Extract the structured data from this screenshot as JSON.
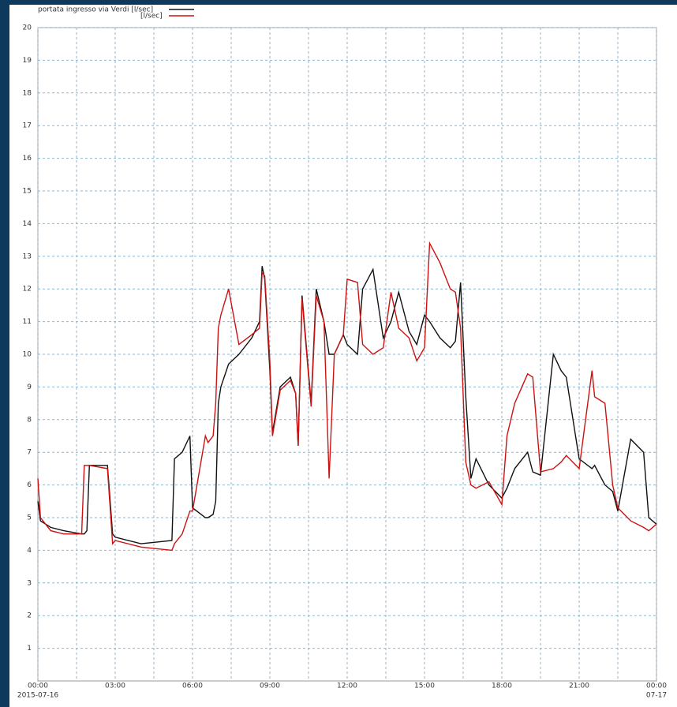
{
  "chart_data": {
    "type": "line",
    "legend": "top-left",
    "grid": true,
    "x": [
      0,
      0.1,
      0.5,
      1.0,
      1.7,
      1.8,
      1.9,
      2.0,
      2.7,
      2.9,
      3.0,
      4.0,
      5.2,
      5.3,
      5.6,
      5.9,
      6.0,
      6.5,
      6.6,
      6.8,
      6.9,
      7.0,
      7.1,
      7.4,
      7.8,
      8.3,
      8.6,
      8.7,
      8.8,
      9.0,
      9.1,
      9.4,
      9.8,
      10.0,
      10.1,
      10.25,
      10.6,
      10.8,
      11.1,
      11.3,
      11.5,
      11.85,
      12.0,
      12.4,
      12.6,
      13.0,
      13.4,
      13.7,
      14.0,
      14.4,
      14.7,
      15.0,
      15.2,
      15.6,
      16.0,
      16.2,
      16.4,
      16.6,
      16.8,
      17.0,
      17.5,
      18.0,
      18.2,
      18.5,
      19.0,
      19.2,
      19.5,
      20.0,
      20.3,
      20.5,
      21.0,
      21.5,
      21.6,
      22.0,
      22.3,
      22.5,
      23.0,
      23.5,
      23.7,
      24.0
    ],
    "series": [
      {
        "name": "portata ingresso via Verdi [l/sec]",
        "color": "#111111",
        "values": [
          5.5,
          4.9,
          4.7,
          4.6,
          4.5,
          4.5,
          4.6,
          6.6,
          6.6,
          4.5,
          4.4,
          4.2,
          4.3,
          6.8,
          7.0,
          7.5,
          5.3,
          5.0,
          5.0,
          5.1,
          5.5,
          8.5,
          9.0,
          9.7,
          10.0,
          10.5,
          11.0,
          12.7,
          12.3,
          9.5,
          7.6,
          9.0,
          9.3,
          8.8,
          7.2,
          11.8,
          8.5,
          12.0,
          11.0,
          10.0,
          10.0,
          10.6,
          10.3,
          10.0,
          12.0,
          12.6,
          10.5,
          11.0,
          11.9,
          10.7,
          10.3,
          11.2,
          11.0,
          10.5,
          10.2,
          10.4,
          12.2,
          8.7,
          6.2,
          6.8,
          6.0,
          5.6,
          5.9,
          6.5,
          7.0,
          6.4,
          6.3,
          10.0,
          9.5,
          9.3,
          6.8,
          6.5,
          6.6,
          6.0,
          5.8,
          5.2,
          7.4,
          7.0,
          5.0,
          4.8
        ]
      },
      {
        "name": "[l/sec]",
        "color": "#cc1111",
        "values": [
          6.2,
          5.0,
          4.6,
          4.5,
          4.5,
          6.6,
          6.6,
          6.6,
          6.5,
          4.2,
          4.3,
          4.1,
          4.0,
          4.2,
          4.5,
          5.2,
          5.2,
          7.5,
          7.3,
          7.5,
          8.5,
          10.8,
          11.2,
          12.0,
          10.3,
          10.6,
          10.8,
          12.5,
          12.4,
          9.8,
          7.5,
          8.9,
          9.2,
          8.8,
          7.2,
          11.7,
          8.4,
          11.8,
          11.0,
          6.2,
          10.0,
          10.6,
          12.3,
          12.2,
          10.3,
          10.0,
          10.2,
          11.9,
          10.8,
          10.5,
          9.8,
          10.2,
          13.4,
          12.8,
          12.0,
          11.9,
          10.8,
          6.7,
          6.0,
          5.9,
          6.1,
          5.4,
          7.5,
          8.5,
          9.4,
          9.3,
          6.4,
          6.5,
          6.7,
          6.9,
          6.5,
          9.5,
          8.7,
          8.5,
          6.0,
          5.3,
          4.9,
          4.7,
          4.6,
          4.8
        ]
      }
    ],
    "xlim": [
      0,
      24
    ],
    "xticks": [
      {
        "value": 0,
        "label": "00:00"
      },
      {
        "value": 3,
        "label": "03:00"
      },
      {
        "value": 6,
        "label": "06:00"
      },
      {
        "value": 9,
        "label": "09:00"
      },
      {
        "value": 12,
        "label": "12:00"
      },
      {
        "value": 15,
        "label": "15:00"
      },
      {
        "value": 18,
        "label": "18:00"
      },
      {
        "value": 21,
        "label": "21:00"
      },
      {
        "value": 24,
        "label": "00:00"
      }
    ],
    "x_sublabels": [
      {
        "value": 0,
        "label": "2015-07-16"
      },
      {
        "value": 24,
        "label": "07-17"
      }
    ],
    "xminor": [
      1.5,
      4.5,
      7.5,
      10.5,
      13.5,
      16.5,
      19.5,
      22.5
    ],
    "ylim": [
      0,
      20
    ],
    "yticks": [
      1,
      2,
      3,
      4,
      5,
      6,
      7,
      8,
      9,
      10,
      11,
      12,
      13,
      14,
      15,
      16,
      17,
      18,
      19,
      20
    ]
  }
}
